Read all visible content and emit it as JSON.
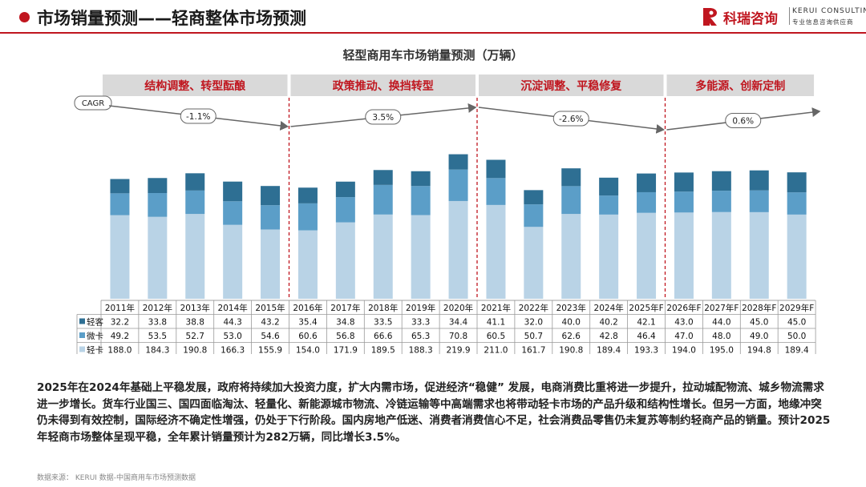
{
  "header": {
    "title": "市场销量预测——轻商整体市场预测",
    "brand_cn": "科瑞咨询",
    "brand_en": "KERUI CONSULTING",
    "brand_sub": "专业信息咨询供应商"
  },
  "colors": {
    "accent": "#c0161f",
    "light_bus": "#2e6f93",
    "mini_truck": "#5b9ec8",
    "light_truck": "#b9d3e6",
    "phase_bg": "#d9d9d9"
  },
  "chart_data": {
    "type": "bar",
    "stacked": true,
    "title": "轻型商用车市场销量预测（万辆）",
    "categories": [
      "2011年",
      "2012年",
      "2013年",
      "2014年",
      "2015年",
      "2016年",
      "2017年",
      "2018年",
      "2019年",
      "2020年",
      "2021年",
      "2022年",
      "2023年",
      "2024年",
      "2025年F",
      "2026年F",
      "2027年F",
      "2028年F",
      "2029年F"
    ],
    "series": [
      {
        "name": "轻卡",
        "color": "#b9d3e6",
        "values": [
          188.0,
          184.3,
          190.8,
          166.3,
          155.9,
          154.0,
          171.9,
          189.5,
          188.3,
          219.9,
          211.0,
          161.7,
          190.8,
          189.4,
          193.3,
          194.0,
          195.0,
          194.8,
          189.4
        ]
      },
      {
        "name": "微卡",
        "color": "#5b9ec8",
        "values": [
          49.2,
          53.5,
          52.7,
          53.0,
          54.6,
          60.6,
          56.8,
          66.6,
          65.3,
          70.8,
          60.5,
          50.7,
          62.6,
          42.8,
          46.4,
          47.0,
          48.0,
          49.0,
          50.0
        ]
      },
      {
        "name": "轻客",
        "color": "#2e6f93",
        "values": [
          32.2,
          33.8,
          38.8,
          44.3,
          43.2,
          35.4,
          34.8,
          33.5,
          33.3,
          34.4,
          41.1,
          32.0,
          40.0,
          40.2,
          42.1,
          43.0,
          44.0,
          45.0,
          45.0
        ]
      }
    ],
    "table_labels": [
      "轻客",
      "微卡",
      "轻卡"
    ],
    "table_values": [
      [
        "32.2",
        "33.8",
        "38.8",
        "44.3",
        "43.2",
        "35.4",
        "34.8",
        "33.5",
        "33.3",
        "34.4",
        "41.1",
        "32.0",
        "40.0",
        "40.2",
        "42.1",
        "43.0",
        "44.0",
        "45.0",
        "45.0"
      ],
      [
        "49.2",
        "53.5",
        "52.7",
        "53.0",
        "54.6",
        "60.6",
        "56.8",
        "66.6",
        "65.3",
        "70.8",
        "60.5",
        "50.7",
        "62.6",
        "42.8",
        "46.4",
        "47.0",
        "48.0",
        "49.0",
        "50.0"
      ],
      [
        "188.0",
        "184.3",
        "190.8",
        "166.3",
        "155.9",
        "154.0",
        "171.9",
        "189.5",
        "188.3",
        "219.9",
        "211.0",
        "161.7",
        "190.8",
        "189.4",
        "193.3",
        "194.0",
        "195.0",
        "194.8",
        "189.4"
      ]
    ],
    "ylim": [
      0,
      325
    ],
    "phases": [
      {
        "label": "结构调整、转型酝酿",
        "start": 0,
        "end": 4,
        "cagr": "-1.1%"
      },
      {
        "label": "政策推动、换挡转型",
        "start": 5,
        "end": 9,
        "cagr": "3.5%"
      },
      {
        "label": "沉淀调整、平稳修复",
        "start": 10,
        "end": 14,
        "cagr": "-2.6%"
      },
      {
        "label": "多能源、创新定制",
        "start": 15,
        "end": 18,
        "cagr": "0.6%"
      }
    ],
    "cagr_label": "CAGR"
  },
  "description": "2025年在2024年基础上平稳发展，政府将持续加大投资力度，扩大内需市场，促进经济“稳健” 发展，电商消费比重将进一步提升，拉动城配物流、城乡物流需求进一步增长。货车行业国三、国四面临淘汰、轻量化、新能源城市物流、冷链运输等中高端需求也将带动轻卡市场的产品升级和结构性增长。但另一方面，地缘冲突仍未得到有效控制，国际经济不确定性增强，仍处于下行阶段。国内房地产低迷、消费者消费信心不足，社会消费品零售仍未复苏等制约轻商产品的销量。预计2025年轻商市场整体呈现平稳，全年累计销量预计为282万辆，同比增长3.5%。",
  "source": "数据来源：    KERUI 数据-中国商用车市场预测数据"
}
